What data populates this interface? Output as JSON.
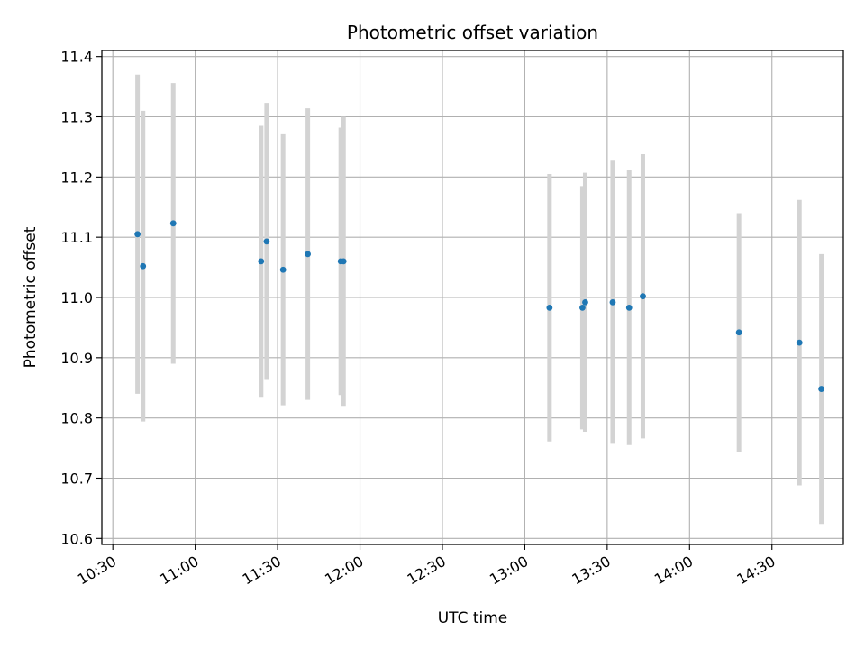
{
  "chart_data": {
    "type": "scatter",
    "title": "Photometric offset variation",
    "xlabel": "UTC time",
    "ylabel": "Photometric offset",
    "xlim": [
      "10:26",
      "14:56"
    ],
    "ylim": [
      10.59,
      11.41
    ],
    "grid": true,
    "x_ticks": [
      "10:30",
      "11:00",
      "11:30",
      "12:00",
      "12:30",
      "13:00",
      "13:30",
      "14:00",
      "14:30"
    ],
    "y_ticks": [
      10.6,
      10.7,
      10.8,
      10.9,
      11.0,
      11.1,
      11.2,
      11.3,
      11.4
    ],
    "y_tick_labels": [
      "10.6",
      "10.7",
      "10.8",
      "10.9",
      "11.0",
      "11.1",
      "11.2",
      "11.3",
      "11.4"
    ],
    "point_color": "#1f77b4",
    "errorbar_color": "#d3d3d3",
    "points": [
      {
        "time": "10:39",
        "y": 11.105,
        "yerr": 0.265
      },
      {
        "time": "10:41",
        "y": 11.052,
        "yerr": 0.258
      },
      {
        "time": "10:52",
        "y": 11.123,
        "yerr": 0.233
      },
      {
        "time": "11:24",
        "y": 11.06,
        "yerr": 0.225
      },
      {
        "time": "11:26",
        "y": 11.093,
        "yerr": 0.23
      },
      {
        "time": "11:32",
        "y": 11.046,
        "yerr": 0.225
      },
      {
        "time": "11:41",
        "y": 11.072,
        "yerr": 0.242
      },
      {
        "time": "11:53",
        "y": 11.06,
        "yerr": 0.222
      },
      {
        "time": "11:54",
        "y": 11.06,
        "yerr": 0.24
      },
      {
        "time": "13:09",
        "y": 10.983,
        "yerr": 0.222
      },
      {
        "time": "13:21",
        "y": 10.983,
        "yerr": 0.202
      },
      {
        "time": "13:22",
        "y": 10.992,
        "yerr": 0.215
      },
      {
        "time": "13:32",
        "y": 10.992,
        "yerr": 0.235
      },
      {
        "time": "13:38",
        "y": 10.983,
        "yerr": 0.228
      },
      {
        "time": "13:43",
        "y": 11.002,
        "yerr": 0.236
      },
      {
        "time": "14:18",
        "y": 10.942,
        "yerr": 0.198
      },
      {
        "time": "14:40",
        "y": 10.925,
        "yerr": 0.237
      },
      {
        "time": "14:48",
        "y": 10.848,
        "yerr": 0.224
      }
    ]
  }
}
